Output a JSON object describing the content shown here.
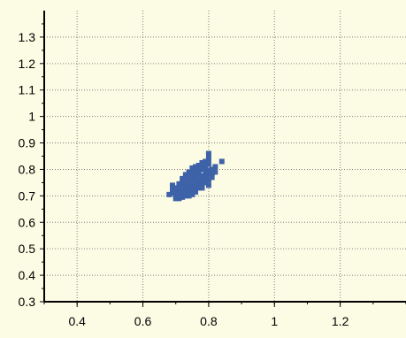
{
  "chart_data": {
    "type": "scatter",
    "title": "",
    "xlabel": "",
    "ylabel": "",
    "xlim": [
      0.3,
      1.4
    ],
    "ylim": [
      0.3,
      1.4
    ],
    "x_ticks": [
      "0.4",
      "0.6",
      "0.8",
      "1",
      "1.2"
    ],
    "y_ticks": [
      "0.3",
      "0.4",
      "0.5",
      "0.6",
      "0.7",
      "0.8",
      "0.9",
      "1",
      "1.1",
      "1.2",
      "1.3"
    ],
    "grid": true,
    "colors": {
      "marker": "#3e62a8",
      "background": "#fcfbe4",
      "grid": "#7f7f7f"
    },
    "series": [
      {
        "points": [
          [
            0.7,
            0.69
          ],
          [
            0.71,
            0.69
          ],
          [
            0.72,
            0.695
          ],
          [
            0.73,
            0.7
          ],
          [
            0.74,
            0.7
          ],
          [
            0.7,
            0.7
          ],
          [
            0.7,
            0.71
          ],
          [
            0.71,
            0.7
          ],
          [
            0.72,
            0.705
          ],
          [
            0.73,
            0.71
          ],
          [
            0.69,
            0.71
          ],
          [
            0.7,
            0.72
          ],
          [
            0.71,
            0.72
          ],
          [
            0.72,
            0.72
          ],
          [
            0.73,
            0.72
          ],
          [
            0.74,
            0.72
          ],
          [
            0.75,
            0.72
          ],
          [
            0.76,
            0.725
          ],
          [
            0.77,
            0.73
          ],
          [
            0.7,
            0.73
          ],
          [
            0.71,
            0.735
          ],
          [
            0.72,
            0.74
          ],
          [
            0.73,
            0.735
          ],
          [
            0.74,
            0.74
          ],
          [
            0.75,
            0.735
          ],
          [
            0.76,
            0.74
          ],
          [
            0.77,
            0.745
          ],
          [
            0.78,
            0.745
          ],
          [
            0.79,
            0.75
          ],
          [
            0.69,
            0.725
          ],
          [
            0.71,
            0.745
          ],
          [
            0.72,
            0.75
          ],
          [
            0.73,
            0.755
          ],
          [
            0.74,
            0.755
          ],
          [
            0.75,
            0.755
          ],
          [
            0.76,
            0.76
          ],
          [
            0.77,
            0.76
          ],
          [
            0.78,
            0.76
          ],
          [
            0.79,
            0.765
          ],
          [
            0.8,
            0.76
          ],
          [
            0.72,
            0.765
          ],
          [
            0.73,
            0.77
          ],
          [
            0.74,
            0.775
          ],
          [
            0.75,
            0.77
          ],
          [
            0.76,
            0.775
          ],
          [
            0.77,
            0.78
          ],
          [
            0.78,
            0.775
          ],
          [
            0.79,
            0.78
          ],
          [
            0.8,
            0.78
          ],
          [
            0.81,
            0.785
          ],
          [
            0.73,
            0.78
          ],
          [
            0.74,
            0.79
          ],
          [
            0.75,
            0.79
          ],
          [
            0.76,
            0.795
          ],
          [
            0.77,
            0.795
          ],
          [
            0.78,
            0.8
          ],
          [
            0.79,
            0.8
          ],
          [
            0.8,
            0.795
          ],
          [
            0.81,
            0.8
          ],
          [
            0.75,
            0.805
          ],
          [
            0.76,
            0.81
          ],
          [
            0.77,
            0.815
          ],
          [
            0.78,
            0.81
          ],
          [
            0.79,
            0.815
          ],
          [
            0.8,
            0.82
          ],
          [
            0.78,
            0.825
          ],
          [
            0.79,
            0.83
          ],
          [
            0.8,
            0.84
          ],
          [
            0.8,
            0.86
          ],
          [
            0.84,
            0.83
          ],
          [
            0.82,
            0.79
          ],
          [
            0.81,
            0.77
          ],
          [
            0.8,
            0.74
          ],
          [
            0.78,
            0.73
          ],
          [
            0.76,
            0.715
          ],
          [
            0.74,
            0.71
          ],
          [
            0.75,
            0.705
          ],
          [
            0.68,
            0.705
          ],
          [
            0.69,
            0.74
          ],
          [
            0.82,
            0.81
          ]
        ]
      }
    ]
  }
}
